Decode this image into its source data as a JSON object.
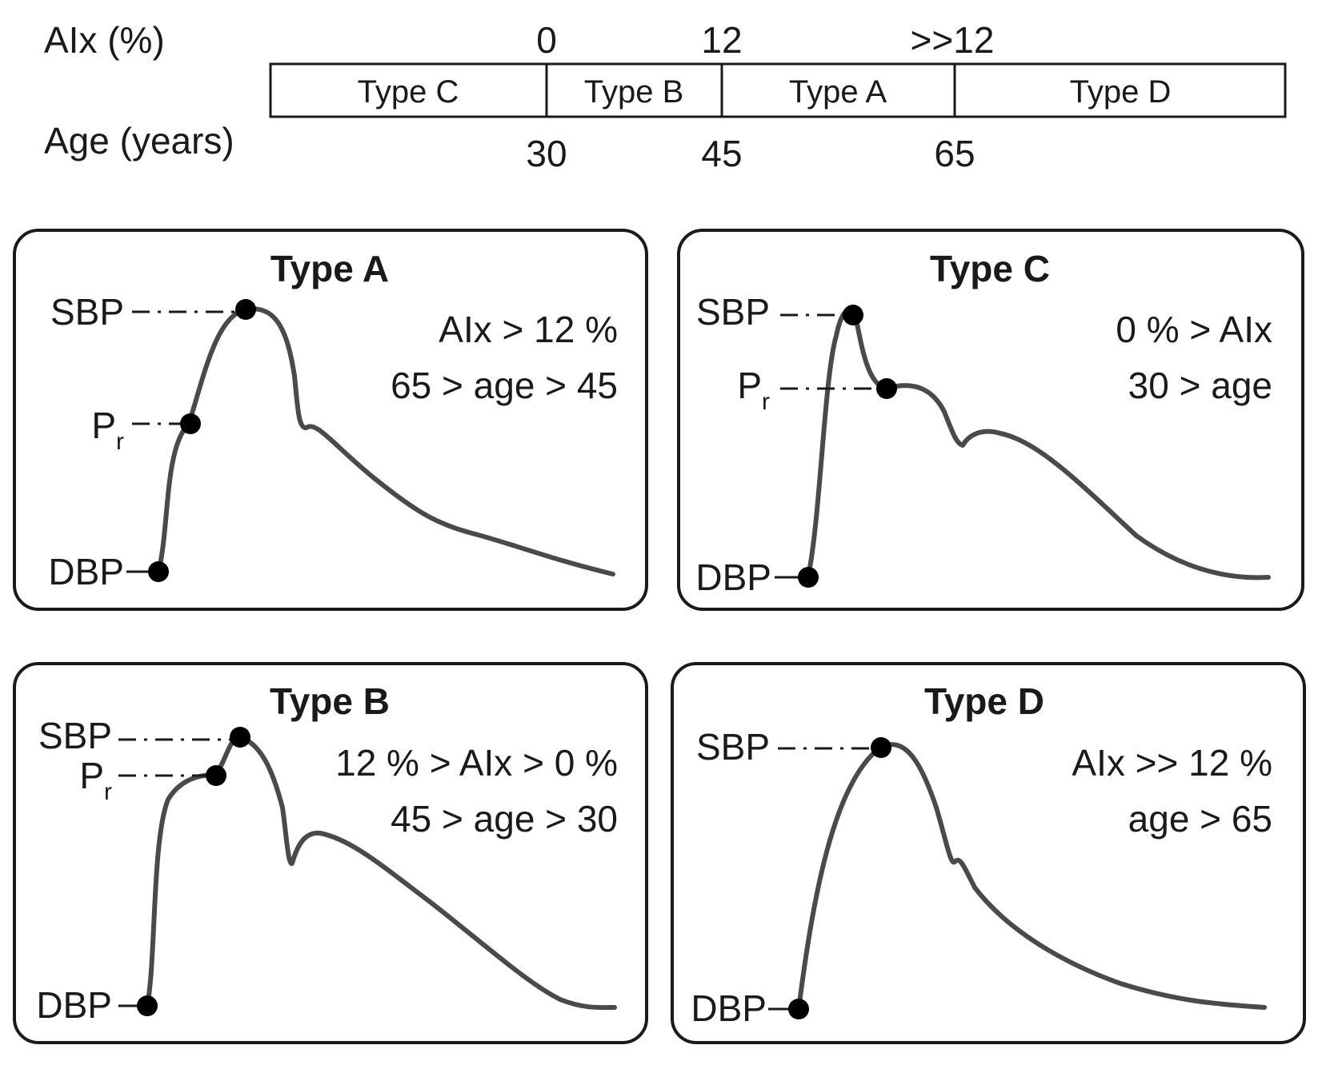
{
  "scale": {
    "aix_label": "AIx (%)",
    "age_label": "Age (years)",
    "aix_ticks": [
      "0",
      "12",
      ">>12"
    ],
    "age_ticks": [
      "30",
      "45",
      "65"
    ],
    "segments": [
      "Type C",
      "Type B",
      "Type A",
      "Type D"
    ]
  },
  "panels": {
    "a": {
      "title": "Type A",
      "sbp": "SBP",
      "pr": "P",
      "pr_sub": "r",
      "dbp": "DBP",
      "line1": "AIx > 12 %",
      "line2": "65 > age > 45"
    },
    "c": {
      "title": "Type C",
      "sbp": "SBP",
      "pr": "P",
      "pr_sub": "r",
      "dbp": "DBP",
      "line1": "0 % > AIx",
      "line2": "30 > age"
    },
    "b": {
      "title": "Type B",
      "sbp": "SBP",
      "pr": "P",
      "pr_sub": "r",
      "dbp": "DBP",
      "line1": "12 % > AIx > 0 %",
      "line2": "45 > age > 30"
    },
    "d": {
      "title": "Type D",
      "sbp": "SBP",
      "dbp": "DBP",
      "line1": "AIx >> 12 %",
      "line2": "age > 65"
    }
  },
  "colors": {
    "waveform": "#4a4a4a",
    "ink": "#1a1a1a"
  }
}
